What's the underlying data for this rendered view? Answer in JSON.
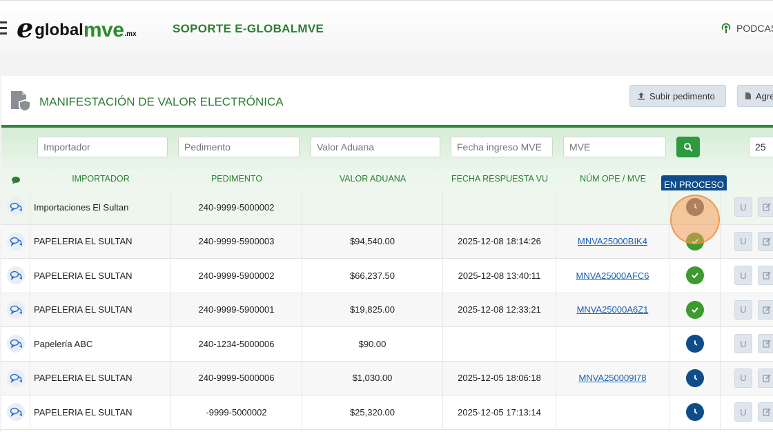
{
  "header": {
    "logo_e": "e",
    "logo_global": "global",
    "logo_mve": "mve",
    "logo_mx": ".mx",
    "site_title": "SOPORTE E-GLOBALMVE",
    "podcast_label": "PODCAS"
  },
  "page": {
    "title": "MANIFESTACIÓN DE VALOR ELECTRÓNICA",
    "upload_button": "Subir pedimento",
    "add_button": "Agre"
  },
  "filters": {
    "importador_placeholder": "Importador",
    "pedimento_placeholder": "Pedimento",
    "valor_placeholder": "Valor Aduana",
    "fecha_placeholder": "Fecha ingreso MVE",
    "mve_placeholder": "MVE",
    "page_size": "25"
  },
  "table": {
    "headers": {
      "importador": "IMPORTADOR",
      "pedimento": "PEDIMENTO",
      "valor": "VALOR ADUANA",
      "fecha": "FECHA RESPUESTA VU",
      "mve": "NÚM OPE / MVE"
    },
    "status_tooltip": "EN PROCESO",
    "rows": [
      {
        "importador": "Importaciones El Sultan",
        "pedimento": "240-9999-5000002",
        "valor": "",
        "fecha": "",
        "mve": "",
        "status": "pending-gray"
      },
      {
        "importador": "PAPELERIA EL SULTAN",
        "pedimento": "240-9999-5900003",
        "valor": "$94,540.00",
        "fecha": "2025-12-08 18:14:26",
        "mve": "MNVA25000BIK4",
        "status": "ok"
      },
      {
        "importador": "PAPELERIA EL SULTAN",
        "pedimento": "240-9999-5900002",
        "valor": "$66,237.50",
        "fecha": "2025-12-08 13:40:11",
        "mve": "MNVA25000AFC6",
        "status": "ok"
      },
      {
        "importador": "PAPELERIA EL SULTAN",
        "pedimento": "240-9999-5900001",
        "valor": "$19,825.00",
        "fecha": "2025-12-08 12:33:21",
        "mve": "MNVA25000A6Z1",
        "status": "ok"
      },
      {
        "importador": "Papelería ABC",
        "pedimento": "240-1234-5000006",
        "valor": "$90.00",
        "fecha": "",
        "mve": "",
        "status": "pending"
      },
      {
        "importador": "PAPELERIA EL SULTAN",
        "pedimento": "240-9999-5000006",
        "valor": "$1,030.00",
        "fecha": "2025-12-05 18:06:18",
        "mve": "MNVA250009I78",
        "status": "pending"
      },
      {
        "importador": "PAPELERIA EL SULTAN",
        "pedimento": "-9999-5000002",
        "valor": "$25,320.00",
        "fecha": "2025-12-05 17:13:14",
        "mve": "",
        "status": "pending"
      }
    ],
    "action_u_label": "U"
  },
  "colors": {
    "brand_green": "#2e7d32",
    "status_ok": "#3c9a2e",
    "status_pending": "#0f4c8a",
    "status_gray": "#555b66"
  }
}
